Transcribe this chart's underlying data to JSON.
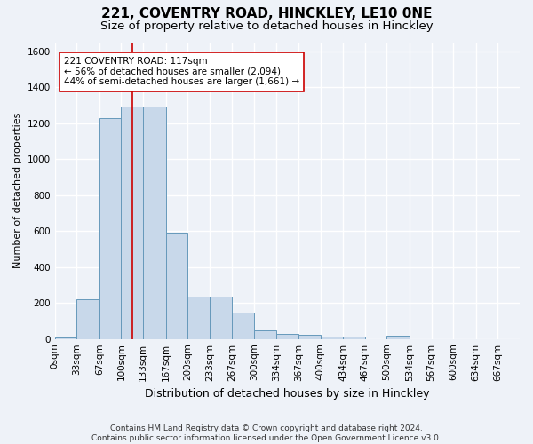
{
  "title1": "221, COVENTRY ROAD, HINCKLEY, LE10 0NE",
  "title2": "Size of property relative to detached houses in Hinckley",
  "xlabel": "Distribution of detached houses by size in Hinckley",
  "ylabel": "Number of detached properties",
  "footnote": "Contains HM Land Registry data © Crown copyright and database right 2024.\nContains public sector information licensed under the Open Government Licence v3.0.",
  "bin_edges": [
    0,
    33,
    67,
    100,
    133,
    167,
    200,
    233,
    267,
    300,
    334,
    367,
    400,
    434,
    467,
    500,
    534,
    567,
    600,
    634,
    667,
    700
  ],
  "bar_heights": [
    10,
    220,
    1230,
    1290,
    1290,
    590,
    235,
    235,
    145,
    50,
    30,
    25,
    15,
    15,
    0,
    20,
    0,
    0,
    0,
    0,
    0
  ],
  "bar_color": "#c8d8ea",
  "bar_edge_color": "#6699bb",
  "property_size": 117,
  "vline_color": "#cc0000",
  "annotation_line1": "221 COVENTRY ROAD: 117sqm",
  "annotation_line2": "← 56% of detached houses are smaller (2,094)",
  "annotation_line3": "44% of semi-detached houses are larger (1,661) →",
  "annotation_box_edgecolor": "#cc0000",
  "annotation_box_facecolor": "#ffffff",
  "ylim": [
    0,
    1650
  ],
  "yticks": [
    0,
    200,
    400,
    600,
    800,
    1000,
    1200,
    1400,
    1600
  ],
  "bg_color": "#eef2f8",
  "plot_bg_color": "#eef2f8",
  "grid_color": "#ffffff",
  "title1_fontsize": 11,
  "title2_fontsize": 9.5,
  "xlabel_fontsize": 9,
  "ylabel_fontsize": 8,
  "tick_fontsize": 7.5,
  "annotation_fontsize": 7.5,
  "footnote_fontsize": 6.5
}
